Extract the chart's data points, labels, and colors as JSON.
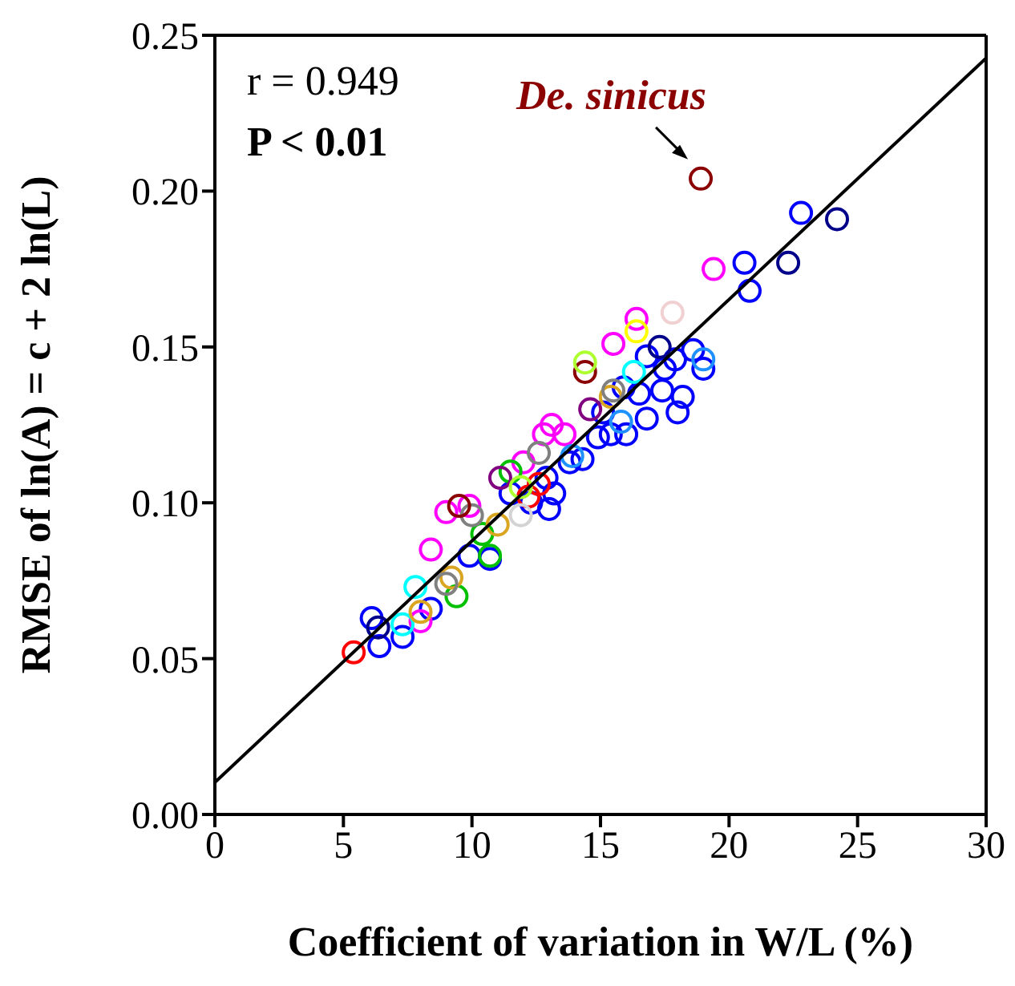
{
  "chart_data": {
    "type": "scatter",
    "xlabel": "Coefficient of variation in W/L (%)",
    "ylabel": "RMSE of ln(A) = c + 2 ln(L)",
    "xlim": [
      0,
      30
    ],
    "xticks": [
      0,
      5,
      10,
      15,
      20,
      25,
      30
    ],
    "ylim": [
      0,
      0.25
    ],
    "yticks": [
      {
        "value": 0,
        "label": "0.00"
      },
      {
        "value": 0.05,
        "label": "0.05"
      },
      {
        "value": 0.1,
        "label": "0.10"
      },
      {
        "value": 0.15,
        "label": "0.15"
      },
      {
        "value": 0.2,
        "label": "0.20"
      },
      {
        "value": 0.25,
        "label": "0.25"
      }
    ],
    "marker": "circle",
    "annotations": [
      "r = 0.949",
      "P < 0.01",
      {
        "text": "De. sinicus",
        "x": 18.9,
        "y": 0.204
      }
    ],
    "series": [
      {
        "color": "#0000ff",
        "x": [
          6.1,
          6.4,
          7.3,
          8.4,
          9.9,
          10.7,
          11.5,
          12.3,
          13.0,
          13.2,
          12.9,
          13.8,
          14.3,
          14.9,
          15.4,
          16.0,
          15.1,
          16.8,
          16.5,
          16.8,
          17.5,
          17.9,
          18.2,
          18.0,
          18.6,
          19.0,
          17.4,
          15.9,
          20.6,
          20.8,
          22.8
        ],
        "values": [
          0.063,
          0.054,
          0.057,
          0.066,
          0.083,
          0.082,
          0.103,
          0.1,
          0.098,
          0.103,
          0.108,
          0.113,
          0.114,
          0.121,
          0.122,
          0.122,
          0.129,
          0.127,
          0.135,
          0.147,
          0.143,
          0.146,
          0.134,
          0.129,
          0.149,
          0.143,
          0.136,
          0.137,
          0.177,
          0.168,
          0.193
        ]
      },
      {
        "color": "#00008b",
        "x": [
          6.35,
          17.3,
          22.3,
          24.2
        ],
        "values": [
          0.06,
          0.15,
          0.177,
          0.191
        ]
      },
      {
        "color": "#ff00ff",
        "x": [
          8.4,
          9.0,
          9.9,
          8.0,
          12.0,
          12.8,
          13.1,
          13.6,
          15.5,
          16.4,
          19.4
        ],
        "values": [
          0.085,
          0.097,
          0.099,
          0.062,
          0.113,
          0.122,
          0.125,
          0.122,
          0.151,
          0.159,
          0.175
        ]
      },
      {
        "color": "#00ffff",
        "x": [
          7.8,
          7.3,
          16.3
        ],
        "values": [
          0.073,
          0.061,
          0.142
        ]
      },
      {
        "color": "#1e90ff",
        "x": [
          19.0,
          15.8,
          13.9
        ],
        "values": [
          0.146,
          0.126,
          0.115
        ]
      },
      {
        "color": "#00c000",
        "x": [
          9.4,
          10.7,
          10.4,
          11.5
        ],
        "values": [
          0.07,
          0.083,
          0.09,
          0.11
        ]
      },
      {
        "color": "#ff0000",
        "x": [
          5.4,
          12.2,
          12.6
        ],
        "values": [
          0.052,
          0.102,
          0.106
        ]
      },
      {
        "color": "#daa520",
        "x": [
          11.0,
          9.2,
          8.0,
          15.4
        ],
        "values": [
          0.093,
          0.076,
          0.065,
          0.134
        ]
      },
      {
        "color": "#808080",
        "x": [
          9.0,
          10.0,
          12.6,
          15.5
        ],
        "values": [
          0.074,
          0.096,
          0.116,
          0.136
        ]
      },
      {
        "color": "#d3d3d3",
        "x": [
          11.9
        ],
        "values": [
          0.096
        ]
      },
      {
        "color": "#800080",
        "x": [
          11.1,
          14.6
        ],
        "values": [
          0.108,
          0.13
        ]
      },
      {
        "color": "#8b0000",
        "x": [
          9.5,
          14.4,
          18.9
        ],
        "values": [
          0.099,
          0.142,
          0.204
        ]
      },
      {
        "color": "#adff2f",
        "x": [
          14.4,
          11.9
        ],
        "values": [
          0.145,
          0.105
        ]
      },
      {
        "color": "#ffff00",
        "x": [
          16.4
        ],
        "values": [
          0.155
        ]
      },
      {
        "color": "#f0d0d0",
        "x": [
          17.8
        ],
        "values": [
          0.161
        ]
      },
      {
        "type": "line",
        "marker": "none",
        "color": "#000000",
        "x": [
          0,
          30
        ],
        "values": [
          0.0103,
          0.2427
        ]
      }
    ]
  }
}
